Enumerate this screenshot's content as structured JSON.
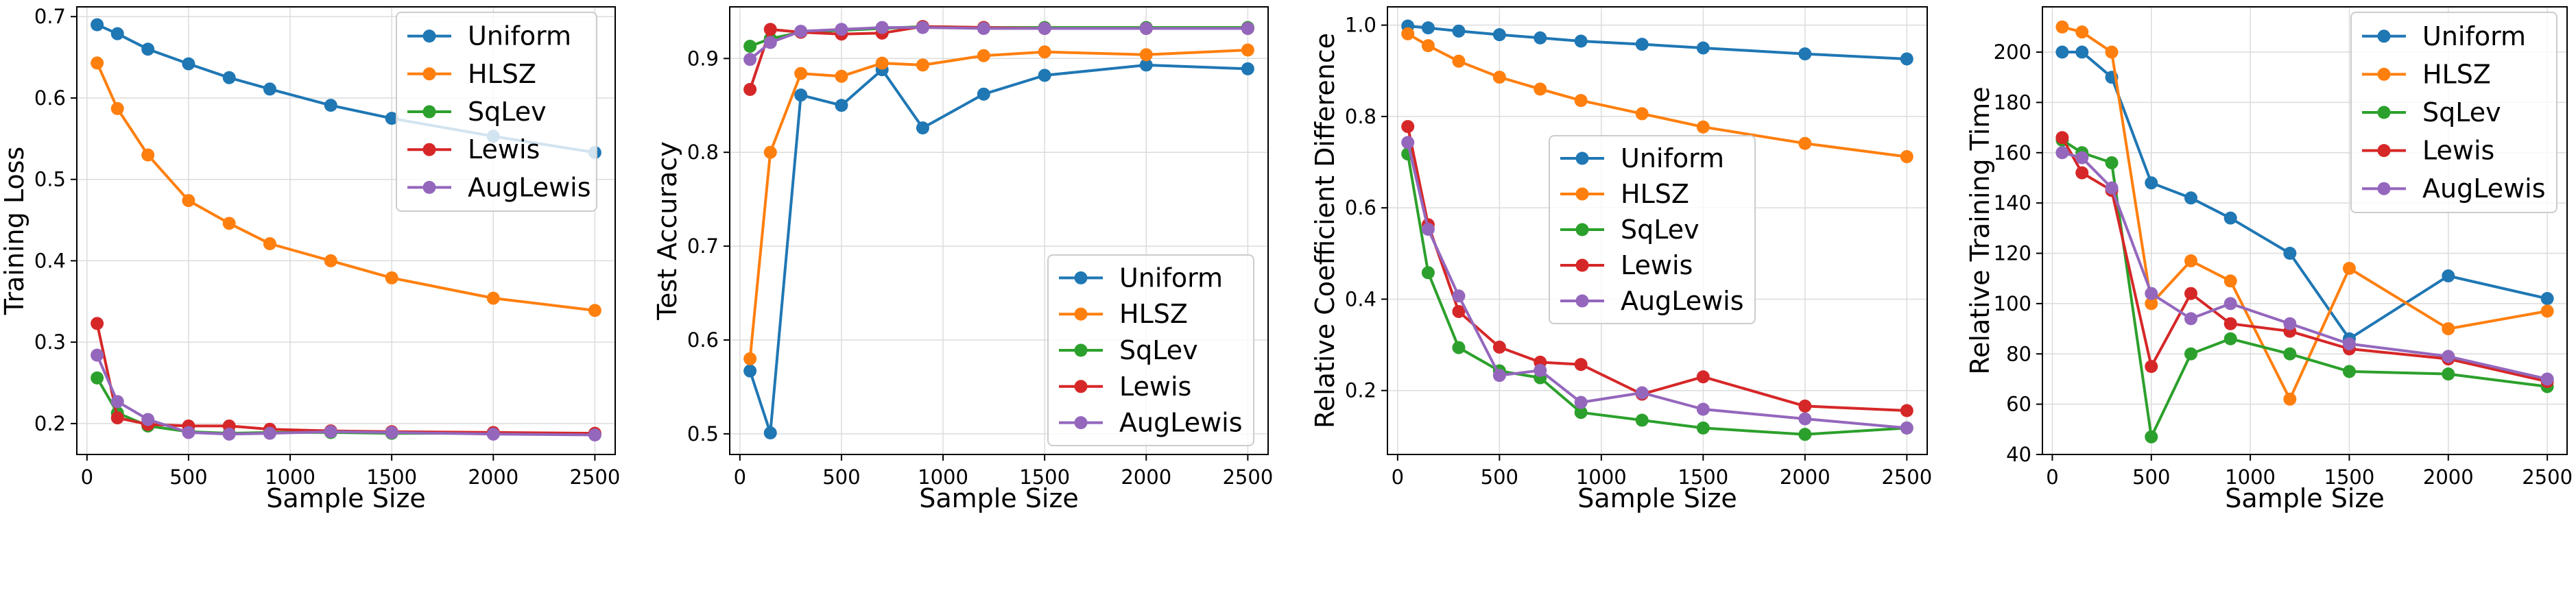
{
  "chart_data": [
    {
      "type": "line",
      "title": "",
      "xlabel": "Sample Size",
      "ylabel": "Training Loss",
      "xlim": [
        -50,
        2600
      ],
      "ylim": [
        0.162,
        0.712
      ],
      "xticks": [
        0,
        500,
        1000,
        1500,
        2000,
        2500
      ],
      "yticks": [
        0.2,
        0.3,
        0.4,
        0.5,
        0.6,
        0.7
      ],
      "ytick_labels": [
        "0.2",
        "0.3",
        "0.4",
        "0.5",
        "0.6",
        "0.7"
      ],
      "grid": true,
      "legend_position": "upper-right",
      "x": [
        50,
        150,
        300,
        500,
        700,
        900,
        1200,
        1500,
        2000,
        2500
      ],
      "series": [
        {
          "name": "Uniform",
          "color": "#1f77b4",
          "values": [
            0.69,
            0.679,
            0.66,
            0.642,
            0.625,
            0.611,
            0.591,
            0.575,
            0.553,
            0.533
          ]
        },
        {
          "name": "HLSZ",
          "color": "#ff7f0e",
          "values": [
            0.643,
            0.587,
            0.53,
            0.474,
            0.446,
            0.421,
            0.4,
            0.379,
            0.354,
            0.339
          ]
        },
        {
          "name": "SqLev",
          "color": "#2ca02c",
          "values": [
            0.256,
            0.213,
            0.197,
            0.19,
            0.188,
            0.189,
            0.189,
            0.188,
            0.188,
            0.187
          ]
        },
        {
          "name": "Lewis",
          "color": "#d62728",
          "values": [
            0.323,
            0.207,
            0.199,
            0.197,
            0.197,
            0.193,
            0.191,
            0.19,
            0.189,
            0.188
          ]
        },
        {
          "name": "AugLewis",
          "color": "#9467bd",
          "values": [
            0.284,
            0.227,
            0.205,
            0.189,
            0.187,
            0.188,
            0.19,
            0.189,
            0.187,
            0.186
          ]
        }
      ]
    },
    {
      "type": "line",
      "title": "",
      "xlabel": "Sample Size",
      "ylabel": "Test Accuracy",
      "xlim": [
        -50,
        2600
      ],
      "ylim": [
        0.478,
        0.955
      ],
      "xticks": [
        0,
        500,
        1000,
        1500,
        2000,
        2500
      ],
      "yticks": [
        0.5,
        0.6,
        0.7,
        0.8,
        0.9
      ],
      "ytick_labels": [
        "0.5",
        "0.6",
        "0.7",
        "0.8",
        "0.9"
      ],
      "grid": true,
      "legend_position": "lower-right",
      "x": [
        50,
        150,
        300,
        500,
        700,
        900,
        1200,
        1500,
        2000,
        2500
      ],
      "series": [
        {
          "name": "Uniform",
          "color": "#1f77b4",
          "values": [
            0.567,
            0.501,
            0.861,
            0.85,
            0.888,
            0.826,
            0.862,
            0.882,
            0.893,
            0.889
          ]
        },
        {
          "name": "HLSZ",
          "color": "#ff7f0e",
          "values": [
            0.58,
            0.8,
            0.884,
            0.881,
            0.895,
            0.893,
            0.903,
            0.907,
            0.904,
            0.909
          ]
        },
        {
          "name": "SqLev",
          "color": "#2ca02c",
          "values": [
            0.913,
            0.921,
            0.928,
            0.93,
            0.932,
            0.934,
            0.933,
            0.933,
            0.933,
            0.933
          ]
        },
        {
          "name": "Lewis",
          "color": "#d62728",
          "values": [
            0.867,
            0.931,
            0.928,
            0.926,
            0.927,
            0.934,
            0.933,
            0.932,
            0.932,
            0.932
          ]
        },
        {
          "name": "AugLewis",
          "color": "#9467bd",
          "values": [
            0.899,
            0.917,
            0.929,
            0.931,
            0.933,
            0.933,
            0.932,
            0.932,
            0.932,
            0.932
          ]
        }
      ]
    },
    {
      "type": "line",
      "title": "",
      "xlabel": "Sample Size",
      "ylabel": "Relative Coefficient Difference",
      "xlim": [
        -50,
        2600
      ],
      "ylim": [
        0.06,
        1.04
      ],
      "xticks": [
        0,
        500,
        1000,
        1500,
        2000,
        2500
      ],
      "yticks": [
        0.2,
        0.4,
        0.6,
        0.8,
        1.0
      ],
      "ytick_labels": [
        "0.2",
        "0.4",
        "0.6",
        "0.8",
        "1.0"
      ],
      "grid": true,
      "legend_position": "center-right",
      "x": [
        50,
        150,
        300,
        500,
        700,
        900,
        1200,
        1500,
        2000,
        2500
      ],
      "series": [
        {
          "name": "Uniform",
          "color": "#1f77b4",
          "values": [
            0.998,
            0.994,
            0.987,
            0.979,
            0.972,
            0.965,
            0.958,
            0.95,
            0.937,
            0.926
          ]
        },
        {
          "name": "HLSZ",
          "color": "#ff7f0e",
          "values": [
            0.981,
            0.955,
            0.921,
            0.886,
            0.86,
            0.835,
            0.806,
            0.777,
            0.741,
            0.712
          ]
        },
        {
          "name": "SqLev",
          "color": "#2ca02c",
          "values": [
            0.718,
            0.458,
            0.294,
            0.243,
            0.228,
            0.152,
            0.135,
            0.118,
            0.104,
            0.118
          ]
        },
        {
          "name": "Lewis",
          "color": "#d62728",
          "values": [
            0.778,
            0.563,
            0.373,
            0.295,
            0.262,
            0.257,
            0.192,
            0.23,
            0.166,
            0.156
          ]
        },
        {
          "name": "AugLewis",
          "color": "#9467bd",
          "values": [
            0.743,
            0.553,
            0.407,
            0.233,
            0.244,
            0.174,
            0.195,
            0.159,
            0.138,
            0.118
          ]
        }
      ]
    },
    {
      "type": "line",
      "title": "",
      "xlabel": "Sample Size",
      "ylabel": "Relative Training Time",
      "xlim": [
        -50,
        2600
      ],
      "ylim": [
        40,
        218
      ],
      "xticks": [
        0,
        500,
        1000,
        1500,
        2000,
        2500
      ],
      "yticks": [
        40,
        60,
        80,
        100,
        120,
        140,
        160,
        180,
        200
      ],
      "ytick_labels": [
        "40",
        "60",
        "80",
        "100",
        "120",
        "140",
        "160",
        "180",
        "200"
      ],
      "grid": true,
      "legend_position": "upper-right",
      "x": [
        50,
        150,
        300,
        500,
        700,
        900,
        1200,
        1500,
        2000,
        2500
      ],
      "series": [
        {
          "name": "Uniform",
          "color": "#1f77b4",
          "values": [
            200,
            200,
            190,
            148,
            142,
            134,
            120,
            86,
            111,
            102
          ]
        },
        {
          "name": "HLSZ",
          "color": "#ff7f0e",
          "values": [
            210,
            208,
            200,
            100,
            117,
            109,
            62,
            114,
            90,
            97
          ]
        },
        {
          "name": "SqLev",
          "color": "#2ca02c",
          "values": [
            165,
            160,
            156,
            47,
            80,
            86,
            80,
            73,
            72,
            67
          ]
        },
        {
          "name": "Lewis",
          "color": "#d62728",
          "values": [
            166,
            152,
            145,
            75,
            104,
            92,
            89,
            82,
            78,
            69
          ]
        },
        {
          "name": "AugLewis",
          "color": "#9467bd",
          "values": [
            160,
            158,
            146,
            104,
            94,
            100,
            92,
            84,
            79,
            70
          ]
        }
      ]
    }
  ]
}
